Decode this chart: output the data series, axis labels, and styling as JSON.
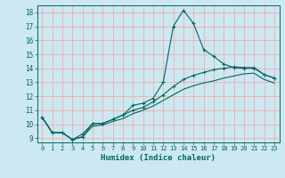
{
  "title": "",
  "xlabel": "Humidex (Indice chaleur)",
  "bg_color": "#cce8f0",
  "grid_color": "#f5aaaa",
  "line_color": "#006666",
  "xlim": [
    -0.5,
    23.5
  ],
  "ylim": [
    8.7,
    18.5
  ],
  "xticks": [
    0,
    1,
    2,
    3,
    4,
    5,
    6,
    7,
    8,
    9,
    10,
    11,
    12,
    13,
    14,
    15,
    16,
    17,
    18,
    19,
    20,
    21,
    22,
    23
  ],
  "yticks": [
    9,
    10,
    11,
    12,
    13,
    14,
    15,
    16,
    17,
    18
  ],
  "line1_x": [
    0,
    1,
    2,
    3,
    4,
    5,
    6,
    7,
    8,
    9,
    10,
    11,
    12,
    13,
    14,
    15,
    16,
    17,
    18,
    19,
    20,
    21,
    22,
    23
  ],
  "line1_y": [
    10.5,
    9.4,
    9.4,
    8.9,
    9.1,
    10.05,
    10.05,
    10.35,
    10.65,
    11.35,
    11.5,
    11.85,
    13.0,
    17.0,
    18.15,
    17.2,
    15.35,
    14.85,
    14.3,
    14.05,
    14.0,
    14.0,
    13.55,
    13.3
  ],
  "line2_x": [
    0,
    1,
    2,
    3,
    4,
    5,
    6,
    7,
    8,
    9,
    10,
    11,
    12,
    13,
    14,
    15,
    16,
    17,
    18,
    19,
    20,
    21,
    22,
    23
  ],
  "line2_y": [
    10.5,
    9.4,
    9.4,
    8.9,
    9.3,
    10.05,
    10.05,
    10.35,
    10.65,
    11.0,
    11.2,
    11.6,
    12.1,
    12.7,
    13.2,
    13.5,
    13.7,
    13.9,
    14.0,
    14.1,
    14.05,
    14.05,
    13.55,
    13.3
  ],
  "line3_x": [
    0,
    1,
    2,
    3,
    4,
    5,
    6,
    7,
    8,
    9,
    10,
    11,
    12,
    13,
    14,
    15,
    16,
    17,
    18,
    19,
    20,
    21,
    22,
    23
  ],
  "line3_y": [
    10.5,
    9.4,
    9.4,
    8.9,
    9.1,
    9.85,
    9.95,
    10.2,
    10.4,
    10.75,
    11.0,
    11.3,
    11.7,
    12.1,
    12.5,
    12.75,
    12.95,
    13.1,
    13.3,
    13.45,
    13.6,
    13.65,
    13.2,
    12.95
  ]
}
